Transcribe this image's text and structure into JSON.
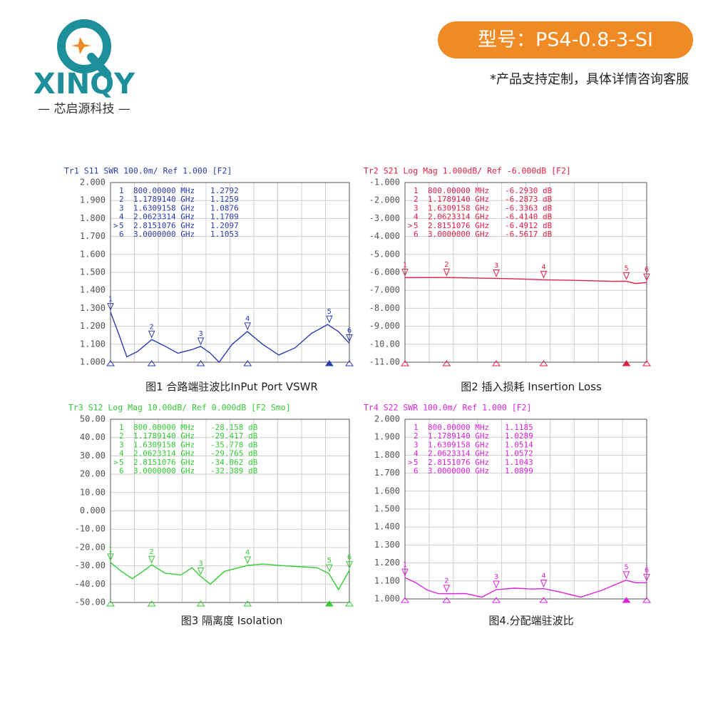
{
  "header": {
    "brand": "XINQY",
    "brand_cn": "— 芯启源科技 —",
    "model": "型号：PS4-0.8-3-SI",
    "note": "*产品支持定制，具体详情咨询客服"
  },
  "chart_data": [
    {
      "type": "line",
      "title": "Tr1 S11 SWR 100.0m/ Ref 1.000 [F2]",
      "caption": "图1 合路端驻波比InPut Port VSWR",
      "color": "#2a3cb0",
      "xlim": [
        0.8,
        3.0
      ],
      "ylim": [
        1.0,
        2.0
      ],
      "yticks": [
        {
          "value": 1.0,
          "label": "1.000"
        },
        {
          "value": 1.1,
          "label": "1.100"
        },
        {
          "value": 1.2,
          "label": "1.200"
        },
        {
          "value": 1.3,
          "label": "1.300"
        },
        {
          "value": 1.4,
          "label": "1.400"
        },
        {
          "value": 1.5,
          "label": "1.500"
        },
        {
          "value": 1.6,
          "label": "1.600"
        },
        {
          "value": 1.7,
          "label": "1.700"
        },
        {
          "value": 1.8,
          "label": "1.800"
        },
        {
          "value": 1.9,
          "label": "1.900"
        },
        {
          "value": 2.0,
          "label": "2.000"
        }
      ],
      "x": [
        0.8,
        0.88,
        0.95,
        1.05,
        1.18,
        1.3,
        1.42,
        1.55,
        1.63,
        1.72,
        1.8,
        1.92,
        2.06,
        2.2,
        2.35,
        2.5,
        2.65,
        2.8,
        2.9,
        3.0
      ],
      "values": [
        1.279,
        1.15,
        1.03,
        1.06,
        1.126,
        1.09,
        1.05,
        1.07,
        1.088,
        1.05,
        1.0,
        1.1,
        1.171,
        1.1,
        1.04,
        1.08,
        1.16,
        1.21,
        1.17,
        1.105
      ],
      "markers": [
        {
          "id": "1",
          "freq": "800.00000 MHz",
          "value": "1.2792",
          "x": 0.8,
          "y": 1.2792
        },
        {
          "id": "2",
          "freq": "1.1789140 GHz",
          "value": "1.1259",
          "x": 1.178914,
          "y": 1.1259
        },
        {
          "id": "3",
          "freq": "1.6309158 GHz",
          "value": "1.0876",
          "x": 1.6309158,
          "y": 1.0876
        },
        {
          "id": "4",
          "freq": "2.0623314 GHz",
          "value": "1.1709",
          "x": 2.0623314,
          "y": 1.1709
        },
        {
          "flag": ">",
          "id": "5",
          "freq": "2.8151076 GHz",
          "value": "1.2097",
          "x": 2.8151076,
          "y": 1.2097
        },
        {
          "id": "6",
          "freq": "3.0000000 GHz",
          "value": "1.1053",
          "x": 3.0,
          "y": 1.1053
        }
      ]
    },
    {
      "type": "line",
      "title": "Tr2 S21 Log Mag 1.000dB/ Ref -6.000dB [F2]",
      "caption": "图2 插入损耗 Insertion Loss",
      "color": "#e0204a",
      "xlim": [
        0.8,
        3.0
      ],
      "ylim": [
        -11,
        -1
      ],
      "yticks": [
        {
          "value": -11,
          "label": "-11.00"
        },
        {
          "value": -10,
          "label": "-10.00"
        },
        {
          "value": -9,
          "label": "-9.000"
        },
        {
          "value": -8,
          "label": "-8.000"
        },
        {
          "value": -7,
          "label": "-7.000"
        },
        {
          "value": -6,
          "label": "-6.000"
        },
        {
          "value": -5,
          "label": "-5.000"
        },
        {
          "value": -4,
          "label": "-4.000"
        },
        {
          "value": -3,
          "label": "-3.000"
        },
        {
          "value": -2,
          "label": "-2.000"
        },
        {
          "value": -1,
          "label": "-1.000"
        }
      ],
      "x": [
        0.8,
        1.0,
        1.18,
        1.4,
        1.63,
        1.85,
        2.06,
        2.3,
        2.5,
        2.7,
        2.81,
        2.9,
        3.0
      ],
      "values": [
        -6.293,
        -6.29,
        -6.287,
        -6.31,
        -6.336,
        -6.37,
        -6.414,
        -6.44,
        -6.47,
        -6.5,
        -6.491,
        -6.62,
        -6.562
      ],
      "markers": [
        {
          "id": "1",
          "freq": "800.00000 MHz",
          "value": "-6.2930 dB",
          "x": 0.8,
          "y": -6.293
        },
        {
          "id": "2",
          "freq": "1.1789140 GHz",
          "value": "-6.2873 dB",
          "x": 1.178914,
          "y": -6.2873
        },
        {
          "id": "3",
          "freq": "1.6309158 GHz",
          "value": "-6.3363 dB",
          "x": 1.6309158,
          "y": -6.3363
        },
        {
          "id": "4",
          "freq": "2.0623314 GHz",
          "value": "-6.4140 dB",
          "x": 2.0623314,
          "y": -6.414
        },
        {
          "flag": ">",
          "id": "5",
          "freq": "2.8151076 GHz",
          "value": "-6.4912 dB",
          "x": 2.8151076,
          "y": -6.4912
        },
        {
          "id": "6",
          "freq": "3.0000000 GHz",
          "value": "-6.5617 dB",
          "x": 3.0,
          "y": -6.5617
        }
      ]
    },
    {
      "type": "line",
      "title": "Tr3 S12 Log Mag 10.00dB/ Ref 0.000dB [F2 Smo]",
      "caption": "图3 隔离度 Isolation",
      "color": "#33cc33",
      "xlim": [
        0.8,
        3.0
      ],
      "ylim": [
        -50,
        50
      ],
      "yticks": [
        {
          "value": -50,
          "label": "-50.00"
        },
        {
          "value": -40,
          "label": "-40.00"
        },
        {
          "value": -30,
          "label": "-30.00"
        },
        {
          "value": -20,
          "label": "-20.00"
        },
        {
          "value": -10,
          "label": "-10.00"
        },
        {
          "value": 0,
          "label": "0.000"
        },
        {
          "value": 10,
          "label": "10.00"
        },
        {
          "value": 20,
          "label": "20.00"
        },
        {
          "value": 30,
          "label": "30.00"
        },
        {
          "value": 40,
          "label": "40.00"
        },
        {
          "value": 50,
          "label": "50.00"
        }
      ],
      "x": [
        0.8,
        0.9,
        1.0,
        1.1,
        1.18,
        1.3,
        1.45,
        1.55,
        1.63,
        1.72,
        1.85,
        2.06,
        2.2,
        2.4,
        2.55,
        2.7,
        2.81,
        2.9,
        3.0
      ],
      "values": [
        -28.2,
        -33,
        -37,
        -33,
        -29.4,
        -34,
        -35,
        -31,
        -35.8,
        -40,
        -33,
        -29.8,
        -29,
        -30,
        -30.5,
        -31,
        -34.1,
        -43,
        -32.4
      ],
      "markers": [
        {
          "id": "1",
          "freq": "800.00000 MHz",
          "value": "-28.158 dB",
          "x": 0.8,
          "y": -28.158
        },
        {
          "id": "2",
          "freq": "1.1789140 GHz",
          "value": "-29.417 dB",
          "x": 1.178914,
          "y": -29.417
        },
        {
          "id": "3",
          "freq": "1.6309158 GHz",
          "value": "-35.778 dB",
          "x": 1.6309158,
          "y": -35.778
        },
        {
          "id": "4",
          "freq": "2.0623314 GHz",
          "value": "-29.765 dB",
          "x": 2.0623314,
          "y": -29.765
        },
        {
          "flag": ">",
          "id": "5",
          "freq": "2.8151076 GHz",
          "value": "-34.062 dB",
          "x": 2.8151076,
          "y": -34.062
        },
        {
          "id": "6",
          "freq": "3.0000000 GHz",
          "value": "-32.389 dB",
          "x": 3.0,
          "y": -32.389
        }
      ]
    },
    {
      "type": "line",
      "title": "Tr4 S22 SWR 100.0m/ Ref 1.000 [F2]",
      "caption": "图4.分配端驻波比",
      "color": "#dd22dd",
      "xlim": [
        0.8,
        3.0
      ],
      "ylim": [
        1.0,
        2.0
      ],
      "yticks": [
        {
          "value": 1.0,
          "label": "1.000"
        },
        {
          "value": 1.1,
          "label": "1.100"
        },
        {
          "value": 1.2,
          "label": "1.200"
        },
        {
          "value": 1.3,
          "label": "1.300"
        },
        {
          "value": 1.4,
          "label": "1.400"
        },
        {
          "value": 1.5,
          "label": "1.500"
        },
        {
          "value": 1.6,
          "label": "1.600"
        },
        {
          "value": 1.7,
          "label": "1.700"
        },
        {
          "value": 1.8,
          "label": "1.800"
        },
        {
          "value": 1.9,
          "label": "1.900"
        },
        {
          "value": 2.0,
          "label": "2.000"
        }
      ],
      "x": [
        0.8,
        0.9,
        1.0,
        1.1,
        1.18,
        1.35,
        1.5,
        1.63,
        1.8,
        1.95,
        2.06,
        2.2,
        2.4,
        2.6,
        2.81,
        2.9,
        3.0
      ],
      "values": [
        1.1185,
        1.09,
        1.05,
        1.03,
        1.0289,
        1.03,
        1.01,
        1.0514,
        1.06,
        1.055,
        1.0572,
        1.04,
        1.01,
        1.05,
        1.1043,
        1.09,
        1.0899
      ],
      "markers": [
        {
          "id": "1",
          "freq": "800.00000 MHz",
          "value": "1.1185",
          "x": 0.8,
          "y": 1.1185
        },
        {
          "id": "2",
          "freq": "1.1789140 GHz",
          "value": "1.0289",
          "x": 1.178914,
          "y": 1.0289
        },
        {
          "id": "3",
          "freq": "1.6309158 GHz",
          "value": "1.0514",
          "x": 1.6309158,
          "y": 1.0514
        },
        {
          "id": "4",
          "freq": "2.0623314 GHz",
          "value": "1.0572",
          "x": 2.0623314,
          "y": 1.0572
        },
        {
          "flag": ">",
          "id": "5",
          "freq": "2.8151076 GHz",
          "value": "1.1043",
          "x": 2.8151076,
          "y": 1.1043
        },
        {
          "id": "6",
          "freq": "3.0000000 GHz",
          "value": "1.0899",
          "x": 3.0,
          "y": 1.0899
        }
      ]
    }
  ]
}
